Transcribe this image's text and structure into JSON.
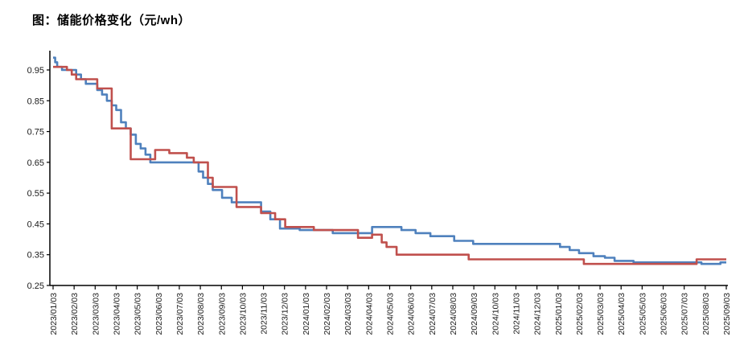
{
  "title": "图：储能价格变化（元/wh）",
  "chart_data": {
    "type": "line",
    "title": "图：储能价格变化（元/wh）",
    "interpolation": "step-after",
    "grid": false,
    "legend": "none",
    "background": "#ffffff",
    "axis_color": "#000000",
    "xlabel": "",
    "ylabel": "",
    "y_axis": {
      "min": 0.25,
      "max": 1.0,
      "ticks": [
        0.25,
        0.35,
        0.45,
        0.55,
        0.65,
        0.75,
        0.85,
        0.95
      ],
      "tick_format": "0.00"
    },
    "x_axis": {
      "rotation": -90,
      "tick_labels": [
        "2023/01/03",
        "2023/02/03",
        "2023/03/03",
        "2023/04/03",
        "2023/05/03",
        "2023/06/03",
        "2023/07/03",
        "2023/08/03",
        "2023/09/03",
        "2023/10/03",
        "2023/11/03",
        "2023/12/03",
        "2024/01/03",
        "2024/02/03",
        "2024/03/03",
        "2024/04/03",
        "2024/05/03",
        "2024/06/03",
        "2024/07/03",
        "2024/08/03",
        "2024/09/03",
        "2024/10/03",
        "2024/11/03",
        "2024/12/03",
        "2025/01/03",
        "2025/02/03",
        "2025/03/03",
        "2025/04/03",
        "2025/05/03",
        "2025/06/03",
        "2025/07/03",
        "2025/08/03",
        "2025/09/03"
      ]
    },
    "series": [
      {
        "name": "blue",
        "color": "#4F81BD",
        "points": [
          [
            "2023/01/03",
            0.99
          ],
          [
            "2023/01/06",
            0.975
          ],
          [
            "2023/01/09",
            0.96
          ],
          [
            "2023/01/16",
            0.95
          ],
          [
            "2023/02/06",
            0.935
          ],
          [
            "2023/02/13",
            0.92
          ],
          [
            "2023/02/20",
            0.905
          ],
          [
            "2023/03/06",
            0.885
          ],
          [
            "2023/03/13",
            0.87
          ],
          [
            "2023/03/20",
            0.85
          ],
          [
            "2023/03/27",
            0.835
          ],
          [
            "2023/04/03",
            0.82
          ],
          [
            "2023/04/10",
            0.78
          ],
          [
            "2023/04/17",
            0.76
          ],
          [
            "2023/04/24",
            0.74
          ],
          [
            "2023/05/01",
            0.71
          ],
          [
            "2023/05/08",
            0.695
          ],
          [
            "2023/05/15",
            0.675
          ],
          [
            "2023/05/22",
            0.65
          ],
          [
            "2023/07/31",
            0.62
          ],
          [
            "2023/08/07",
            0.6
          ],
          [
            "2023/08/14",
            0.58
          ],
          [
            "2023/08/21",
            0.56
          ],
          [
            "2023/09/04",
            0.535
          ],
          [
            "2023/09/18",
            0.52
          ],
          [
            "2023/10/30",
            0.49
          ],
          [
            "2023/11/13",
            0.465
          ],
          [
            "2023/11/27",
            0.435
          ],
          [
            "2023/12/25",
            0.43
          ],
          [
            "2024/02/12",
            0.42
          ],
          [
            "2024/04/08",
            0.44
          ],
          [
            "2024/05/20",
            0.43
          ],
          [
            "2024/06/10",
            0.42
          ],
          [
            "2024/07/01",
            0.41
          ],
          [
            "2024/08/05",
            0.395
          ],
          [
            "2024/09/02",
            0.385
          ],
          [
            "2025/01/06",
            0.375
          ],
          [
            "2025/01/20",
            0.365
          ],
          [
            "2025/02/03",
            0.355
          ],
          [
            "2025/02/24",
            0.345
          ],
          [
            "2025/03/10",
            0.34
          ],
          [
            "2025/03/24",
            0.33
          ],
          [
            "2025/04/21",
            0.325
          ],
          [
            "2025/07/28",
            0.32
          ],
          [
            "2025/08/25",
            0.325
          ],
          [
            "2025/09/03",
            0.325
          ]
        ]
      },
      {
        "name": "red",
        "color": "#C0504D",
        "points": [
          [
            "2023/01/03",
            0.96
          ],
          [
            "2023/01/23",
            0.95
          ],
          [
            "2023/01/30",
            0.935
          ],
          [
            "2023/02/06",
            0.92
          ],
          [
            "2023/03/06",
            0.89
          ],
          [
            "2023/03/27",
            0.76
          ],
          [
            "2023/04/24",
            0.66
          ],
          [
            "2023/05/29",
            0.69
          ],
          [
            "2023/06/19",
            0.68
          ],
          [
            "2023/07/14",
            0.665
          ],
          [
            "2023/07/24",
            0.65
          ],
          [
            "2023/08/14",
            0.6
          ],
          [
            "2023/08/21",
            0.57
          ],
          [
            "2023/09/25",
            0.505
          ],
          [
            "2023/10/30",
            0.485
          ],
          [
            "2023/11/20",
            0.465
          ],
          [
            "2023/12/04",
            0.44
          ],
          [
            "2024/01/15",
            0.43
          ],
          [
            "2024/03/18",
            0.405
          ],
          [
            "2024/04/08",
            0.415
          ],
          [
            "2024/04/22",
            0.39
          ],
          [
            "2024/04/29",
            0.375
          ],
          [
            "2024/05/13",
            0.35
          ],
          [
            "2024/08/26",
            0.335
          ],
          [
            "2025/02/10",
            0.32
          ],
          [
            "2025/07/21",
            0.335
          ],
          [
            "2025/09/03",
            0.335
          ]
        ]
      }
    ]
  }
}
